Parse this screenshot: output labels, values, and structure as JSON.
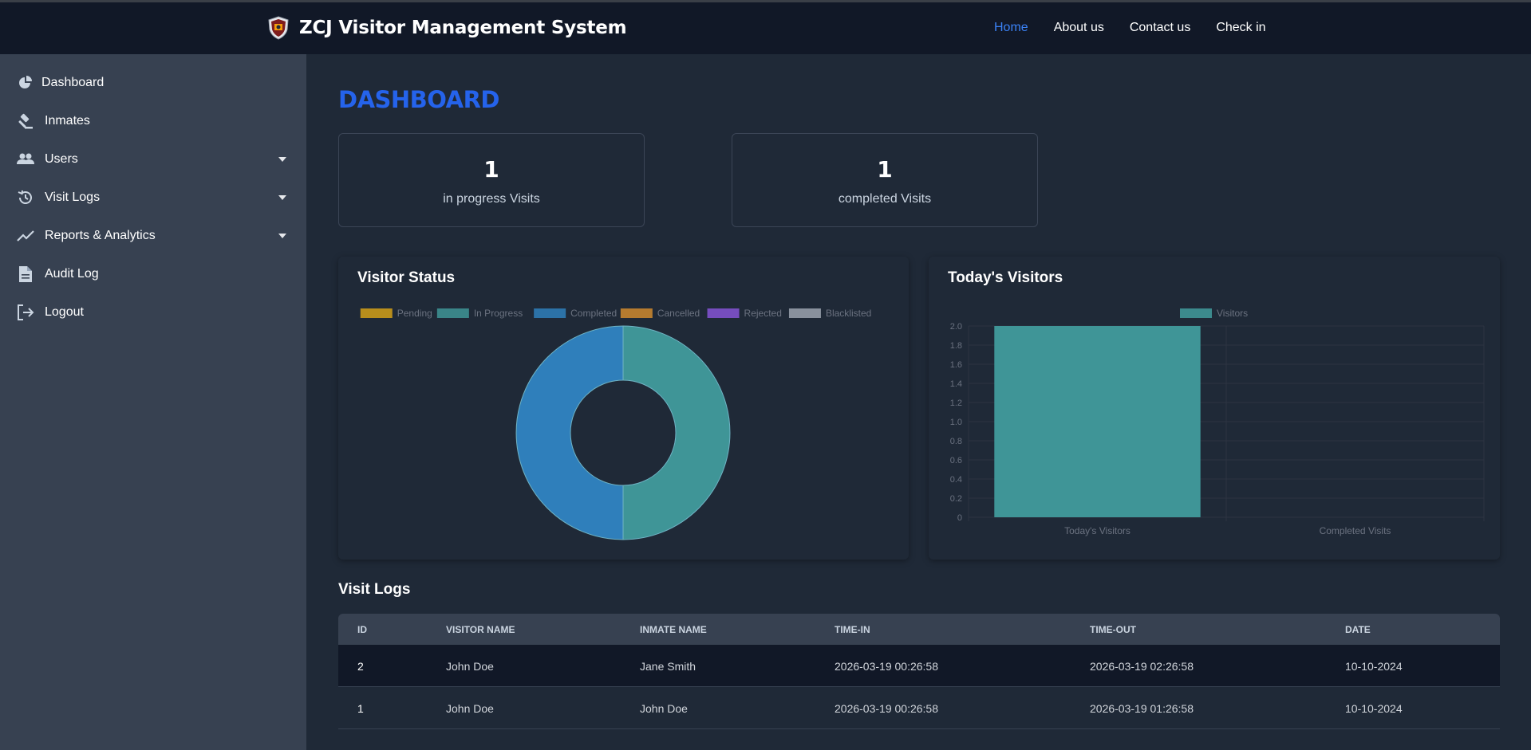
{
  "app": {
    "title": "ZCJ Visitor Management System",
    "nav": [
      {
        "label": "Home",
        "active": true
      },
      {
        "label": "About us"
      },
      {
        "label": "Contact us"
      },
      {
        "label": "Check in"
      }
    ]
  },
  "sidebar": {
    "items": [
      {
        "label": "Dashboard",
        "icon": "pie-chart-icon"
      },
      {
        "label": "Inmates",
        "icon": "gavel-icon"
      },
      {
        "label": "Users",
        "icon": "users-icon",
        "dropdown": true
      },
      {
        "label": "Visit Logs",
        "icon": "history-icon",
        "dropdown": true
      },
      {
        "label": "Reports & Analytics",
        "icon": "trend-line-icon",
        "dropdown": true
      },
      {
        "label": "Audit Log",
        "icon": "document-icon"
      },
      {
        "label": "Logout",
        "icon": "logout-icon"
      }
    ]
  },
  "page": {
    "title": "DASHBOARD"
  },
  "stats": [
    {
      "value": "1",
      "label": "in progress Visits"
    },
    {
      "value": "1",
      "label": "completed Visits"
    }
  ],
  "charts": {
    "status_title": "Visitor Status",
    "visitors_title": "Today's Visitors"
  },
  "chart_data": [
    {
      "type": "pie",
      "title": "Visitor Status",
      "categories": [
        "Pending",
        "In Progress",
        "Completed",
        "Cancelled",
        "Rejected",
        "Blacklisted"
      ],
      "values": [
        0,
        1,
        1,
        0,
        0,
        0
      ],
      "colors": [
        "#d4a017",
        "#3f9597",
        "#2f7fbb",
        "#d08a2e",
        "#8654d6",
        "#9ca3af"
      ],
      "legend": "top"
    },
    {
      "type": "bar",
      "title": "Today's Visitors",
      "categories": [
        "Today's Visitors",
        "Completed Visits"
      ],
      "series": [
        {
          "name": "Visitors",
          "values": [
            2,
            0
          ],
          "color": "#3f9597"
        }
      ],
      "ylim": [
        0,
        2.0
      ],
      "yticks": [
        "2.0",
        "1.8",
        "1.6",
        "1.4",
        "1.2",
        "1.0",
        "0.8",
        "0.6",
        "0.4",
        "0.2",
        "0"
      ],
      "grid": true,
      "legend": "top"
    }
  ],
  "visit_logs": {
    "title": "Visit Logs",
    "columns": [
      "ID",
      "VISITOR NAME",
      "INMATE NAME",
      "TIME-IN",
      "TIME-OUT",
      "DATE"
    ],
    "rows": [
      [
        "2",
        "John Doe",
        "Jane Smith",
        "2026-03-19 00:26:58",
        "2026-03-19 02:26:58",
        "10-10-2024"
      ],
      [
        "1",
        "John Doe",
        "John Doe",
        "2026-03-19 00:26:58",
        "2026-03-19 01:26:58",
        "10-10-2024"
      ]
    ]
  }
}
